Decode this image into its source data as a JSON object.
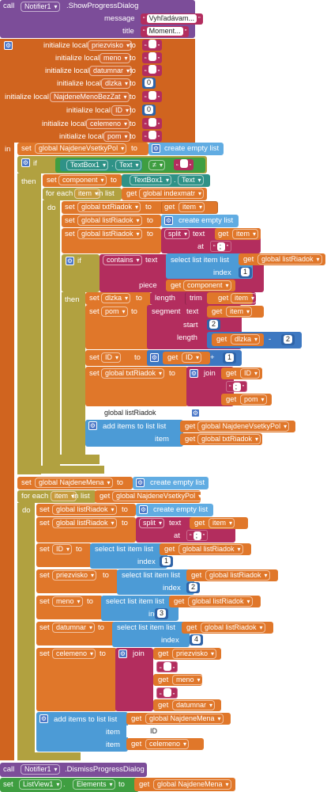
{
  "notify": {
    "call_kw": "call",
    "component": "Notifier1",
    "method": ".ShowProgressDialog",
    "message_label": "message",
    "message_value": "Vyhľadávam...",
    "title_label": "title",
    "title_value": "Moment..."
  },
  "locals": [
    {
      "kw": "initialize local",
      "name": "priezvisko",
      "to": "to",
      "value": ""
    },
    {
      "kw": "initialize local",
      "name": "meno",
      "to": "to",
      "value": ""
    },
    {
      "kw": "initialize local",
      "name": "datumnar",
      "to": "to",
      "value": ""
    },
    {
      "kw": "initialize local",
      "name": "dlzka",
      "to": "to",
      "value": "0"
    },
    {
      "kw": "initialize local",
      "name": "NajdeneMenoBezZat",
      "to": "to",
      "value": ""
    },
    {
      "kw": "initialize local",
      "name": "ID",
      "to": "to",
      "value": "0"
    },
    {
      "kw": "initialize local",
      "name": "celemeno",
      "to": "to",
      "value": ""
    },
    {
      "kw": "initialize local",
      "name": "pom",
      "to": "to",
      "value": ""
    }
  ],
  "kw": {
    "in": "in",
    "set": "set",
    "to": "to",
    "get": "get",
    "if": "if",
    "then": "then",
    "do": "do",
    "for_each": "for each",
    "in_list": "in list",
    "create_empty_list": "create empty list",
    "text": "text",
    "at": "at",
    "contains": "contains",
    "piece": "piece",
    "select_list_item": "select list item",
    "list": "list",
    "index": "index",
    "length": "length",
    "trim": "trim",
    "segment": "segment",
    "start": "start",
    "join": "join",
    "add_items": "add items to list",
    "item": "item",
    "split": "split",
    "neq": "≠",
    "minus": "-",
    "plus": "+",
    "call": "call"
  },
  "vars": {
    "najdene_vsetky_pol": "global NajdeneVsetkyPol",
    "component": "component",
    "item": "item",
    "indexmatr": "global indexmatr",
    "txtriadok": "global txtRiadok",
    "listriadok": "global listRiadok",
    "dlzka": "dlzka",
    "pom": "pom",
    "id": "ID",
    "najdene_mena": "global NajdeneMena",
    "priezvisko": "priezvisko",
    "meno": "meno",
    "datumnar": "datumnar",
    "celemeno": "celemeno"
  },
  "comp": {
    "textbox": "TextBox1",
    "text_prop": "Text",
    "notifier": "Notifier1",
    "dismiss": ".DismissProgressDialog",
    "listview": "ListView1",
    "elements": "Elements"
  },
  "literals": {
    "empty": "",
    "split_sep": ";",
    "one": "1",
    "two": "2",
    "three": "3",
    "four": "4"
  },
  "mutator": {
    "listriadok": "global listRiadok",
    "id": "ID"
  }
}
